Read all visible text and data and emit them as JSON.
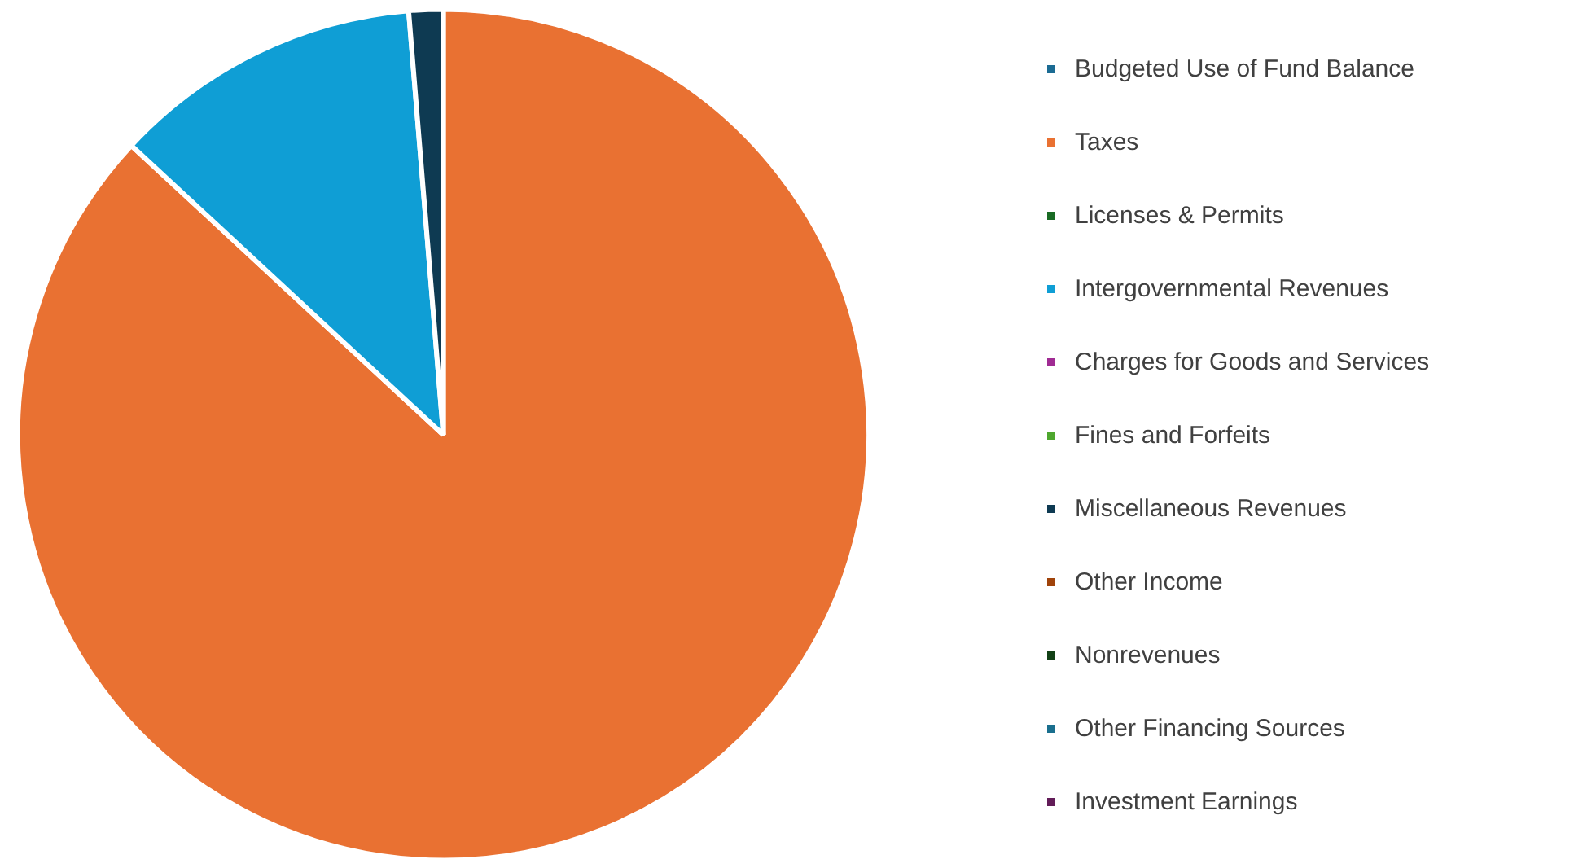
{
  "chart_data": {
    "type": "pie",
    "categories": [
      "Budgeted Use of Fund Balance",
      "Taxes",
      "Licenses & Permits",
      "Intergovernmental Revenues",
      "Charges for Goods and Services",
      "Fines and Forfeits",
      "Miscellaneous Revenues",
      "Other Income",
      "Nonrevenues",
      "Other Financing Sources",
      "Investment Earnings"
    ],
    "values": [
      0,
      86.9,
      0,
      11.8,
      0,
      0,
      1.3,
      0,
      0,
      0,
      0
    ],
    "colors": [
      "#1b6b93",
      "#e97132",
      "#196b24",
      "#0f9ed5",
      "#a02b93",
      "#4ea72e",
      "#0e3a52",
      "#a0430a",
      "#124116",
      "#1a6f8e",
      "#621c58"
    ],
    "legend": "right"
  }
}
